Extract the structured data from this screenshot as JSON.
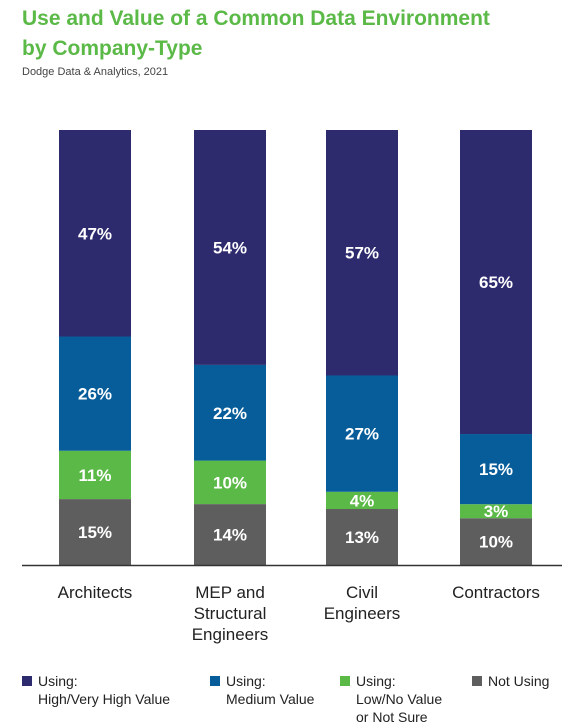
{
  "title_line1": "Use and Value of a Common Data Environment",
  "title_line2": "by Company-Type",
  "source": "Dodge Data & Analytics, 2021",
  "colors": {
    "high": "#2d2a6e",
    "medium": "#065d9a",
    "low": "#5bb947",
    "not_using": "#5e5e5e",
    "title": "#5bb947"
  },
  "legend": [
    {
      "line1": "Using:",
      "line2": "High/Very High Value",
      "line3": ""
    },
    {
      "line1": "Using:",
      "line2": "Medium Value",
      "line3": ""
    },
    {
      "line1": "Using:",
      "line2": "Low/No Value",
      "line3": "or Not Sure"
    },
    {
      "line1": "Not Using",
      "line2": "",
      "line3": ""
    }
  ],
  "chart_data": {
    "type": "bar",
    "stacked": true,
    "title": "Use and Value of a Common Data Environment by Company-Type",
    "categories": [
      [
        "Architects"
      ],
      [
        "MEP and",
        "Structural",
        "Engineers"
      ],
      [
        "Civil",
        "Engineers"
      ],
      [
        "Contractors"
      ]
    ],
    "series": [
      {
        "name": "Using: High/Very High Value",
        "values": [
          47,
          54,
          57,
          65
        ]
      },
      {
        "name": "Using: Medium Value",
        "values": [
          26,
          22,
          27,
          15
        ]
      },
      {
        "name": "Using: Low/No Value or Not Sure",
        "values": [
          11,
          10,
          4,
          3
        ]
      },
      {
        "name": "Not Using",
        "values": [
          15,
          14,
          13,
          10
        ]
      }
    ],
    "unit": "%",
    "legend_position": "bottom",
    "grid": false
  }
}
